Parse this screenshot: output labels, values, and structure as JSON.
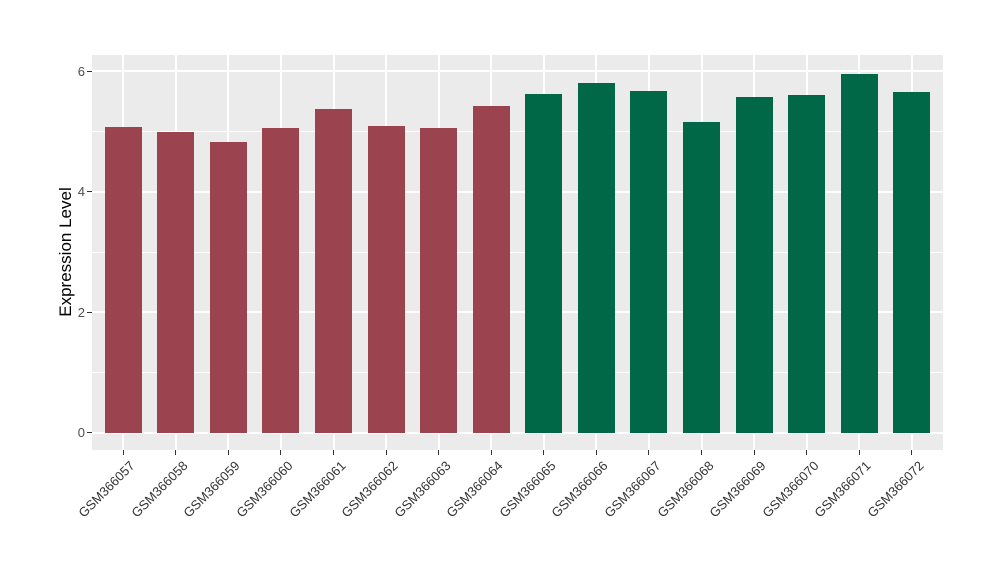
{
  "figure": {
    "background_color": "#FFFFFF",
    "panel_background_color": "#EBEBEB",
    "gridline_color": "#FFFFFF",
    "tick_mark_color": "#333333",
    "y_tick_text_color": "#4D4D4D",
    "x_tick_text_color": "#333333",
    "axis_title_color": "#000000"
  },
  "chart_data": {
    "type": "bar",
    "title": "",
    "xlabel": "",
    "ylabel": "Expression Level",
    "categories": [
      "GSM366057",
      "GSM366058",
      "GSM366059",
      "GSM366060",
      "GSM366061",
      "GSM366062",
      "GSM366063",
      "GSM366064",
      "GSM366065",
      "GSM366066",
      "GSM366067",
      "GSM366068",
      "GSM366069",
      "GSM366070",
      "GSM366071",
      "GSM366072"
    ],
    "values": [
      5.08,
      4.99,
      4.83,
      5.06,
      5.38,
      5.1,
      5.06,
      5.42,
      5.63,
      5.81,
      5.68,
      5.16,
      5.57,
      5.61,
      5.95,
      5.66
    ],
    "bar_colors": [
      "#9B4450",
      "#9B4450",
      "#9B4450",
      "#9B4450",
      "#9B4450",
      "#9B4450",
      "#9B4450",
      "#9B4450",
      "#006847",
      "#006847",
      "#006847",
      "#006847",
      "#006847",
      "#006847",
      "#006847",
      "#006847"
    ],
    "group_color_left": "#9B4450",
    "group_color_right": "#006847",
    "yticks": [
      0,
      2,
      4,
      6
    ],
    "yticks_minor": [
      1,
      3,
      5
    ],
    "ylim": [
      -0.3,
      6.3
    ],
    "grid": "on",
    "legend": "none"
  }
}
